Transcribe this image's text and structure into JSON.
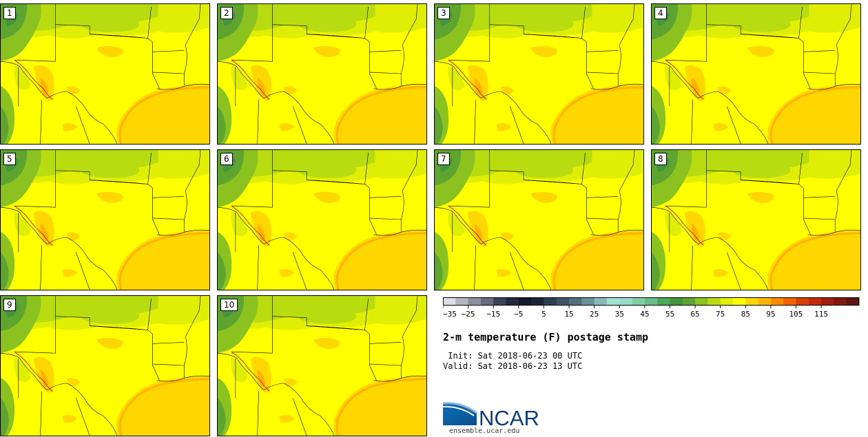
{
  "panels": [
    "1",
    "2",
    "3",
    "4",
    "5",
    "6",
    "7",
    "8",
    "9",
    "10"
  ],
  "colorbar": {
    "colors": [
      "#dcdde6",
      "#b4b6c2",
      "#8c8f9e",
      "#676b7d",
      "#3a4256",
      "#22293b",
      "#121a2b",
      "#1b2538",
      "#2d3e52",
      "#3f5567",
      "#52707e",
      "#6a9197",
      "#88b9b9",
      "#a2e1d5",
      "#9adccc",
      "#80cfa8",
      "#66be88",
      "#4da756",
      "#43963b",
      "#5ea42f",
      "#8cc21f",
      "#b8dc10",
      "#e0ee06",
      "#ffff00",
      "#ffd700",
      "#ffb300",
      "#ff8c00",
      "#f26100",
      "#d8410a",
      "#c12a0d",
      "#a31d10",
      "#7f1a10",
      "#5e160e"
    ],
    "tick_labels": [
      "−35",
      "−25",
      "−15",
      "−5",
      "5",
      "15",
      "25",
      "35",
      "45",
      "55",
      "65",
      "75",
      "85",
      "95",
      "105",
      "115"
    ]
  },
  "title": "2-m temperature (F) postage stamp",
  "init_line": " Init: Sat 2018-06-23 00 UTC",
  "valid_line": "Valid: Sat 2018-06-23 13 UTC",
  "logo_text": "NCAR",
  "url": "ensemble.ucar.edu"
}
